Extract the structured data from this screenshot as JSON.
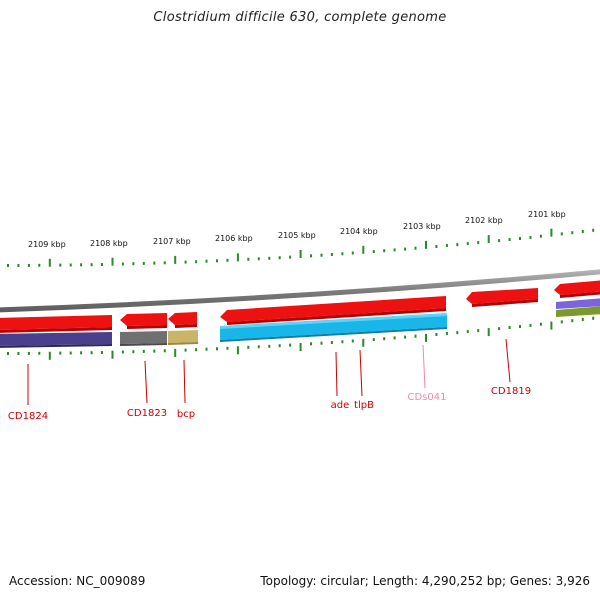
{
  "title": "Clostridium difficile 630, complete genome",
  "footer": {
    "accession": "Accession: NC_009089",
    "summary": "Topology: circular; Length: 4,290,252 bp; Genes: 3,926"
  },
  "colors": {
    "forward_gene": "#ee1111",
    "reverse_gene": "#ee1111",
    "backbone": "#8a8a8a",
    "tick": "#2a8a2a",
    "label_red": "#cc0000",
    "label_pink": "#ee88aa",
    "cog_purple": "#4a3f8c",
    "cog_gray": "#707070",
    "cog_khaki": "#c9b468",
    "cog_cyan": "#19b6ea",
    "cog_olive": "#7a9a2a"
  },
  "ruler": {
    "unit": "kbp",
    "labels": [
      "2109 kbp",
      "2108 kbp",
      "2107 kbp",
      "2106 kbp",
      "2105 kbp",
      "2104 kbp",
      "2103 kbp",
      "2102 kbp",
      "2101 kbp"
    ]
  },
  "genes": [
    {
      "name": "CD1824",
      "strand": "reverse",
      "color": "red"
    },
    {
      "name": "CD1823",
      "strand": "reverse",
      "color": "red"
    },
    {
      "name": "bcp",
      "strand": "reverse",
      "color": "red"
    },
    {
      "name": "ade",
      "strand": "reverse",
      "color": "red"
    },
    {
      "name": "tlpB",
      "strand": "reverse",
      "color": "red"
    },
    {
      "name": "CDs041",
      "strand": "reverse",
      "color": "pink"
    },
    {
      "name": "CD1819",
      "strand": "reverse",
      "color": "red"
    }
  ]
}
